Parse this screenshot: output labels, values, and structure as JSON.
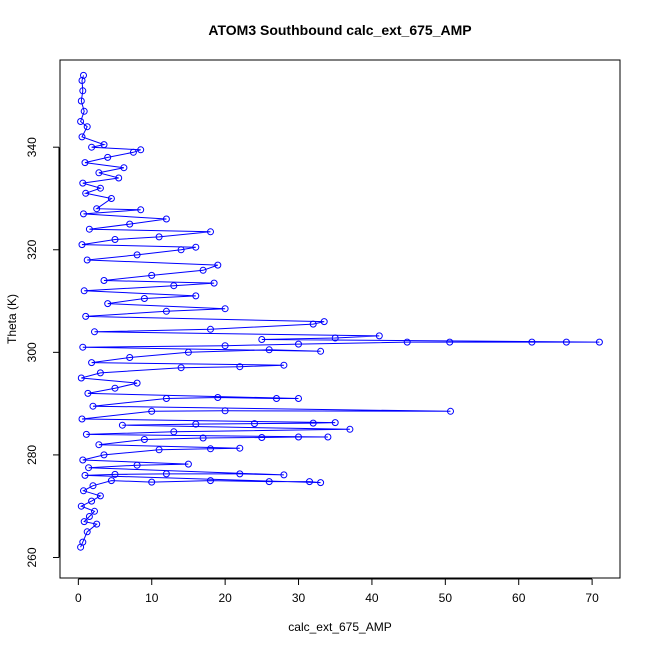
{
  "chart_data": {
    "type": "scatter",
    "title": "ATOM3 Southbound calc_ext_675_AMP",
    "xlabel": "calc_ext_675_AMP",
    "ylabel": "Theta (K)",
    "xlim": [
      -2.5,
      73.8
    ],
    "ylim": [
      256,
      357
    ],
    "xticks": [
      0,
      10,
      20,
      30,
      40,
      50,
      60,
      70
    ],
    "yticks": [
      260,
      280,
      300,
      320,
      340
    ],
    "grid": false,
    "legend": "none",
    "colors": {
      "series": "#0000ff",
      "axes": "#000000"
    },
    "markers": "open-circle",
    "connected": true,
    "series": [
      {
        "values": [
          [
            0.3,
            262
          ],
          [
            0.6,
            263
          ],
          [
            1.2,
            265
          ],
          [
            2.5,
            266.5
          ],
          [
            0.8,
            267
          ],
          [
            1.5,
            268
          ],
          [
            2.2,
            269
          ],
          [
            0.4,
            270
          ],
          [
            1.8,
            271
          ],
          [
            3.0,
            272
          ],
          [
            0.7,
            273
          ],
          [
            2.0,
            274
          ],
          [
            4.5,
            275
          ],
          [
            10,
            274.7
          ],
          [
            18,
            275
          ],
          [
            26,
            274.8
          ],
          [
            31.5,
            274.8
          ],
          [
            33,
            274.6
          ],
          [
            0.9,
            276
          ],
          [
            5,
            276.2
          ],
          [
            12,
            276.3
          ],
          [
            22,
            276.3
          ],
          [
            28,
            276.1
          ],
          [
            1.4,
            277.5
          ],
          [
            8,
            278
          ],
          [
            15,
            278.2
          ],
          [
            0.6,
            279
          ],
          [
            3.5,
            280
          ],
          [
            11,
            281
          ],
          [
            18,
            281.2
          ],
          [
            22,
            281.3
          ],
          [
            2.8,
            282
          ],
          [
            9,
            283
          ],
          [
            17,
            283.3
          ],
          [
            25,
            283.4
          ],
          [
            30,
            283.5
          ],
          [
            34,
            283.5
          ],
          [
            1.1,
            284
          ],
          [
            13,
            284.5
          ],
          [
            37,
            285
          ],
          [
            6,
            285.8
          ],
          [
            16,
            286
          ],
          [
            24,
            286.1
          ],
          [
            32,
            286.2
          ],
          [
            35,
            286.3
          ],
          [
            0.5,
            287
          ],
          [
            10,
            288.5
          ],
          [
            20,
            288.6
          ],
          [
            50.7,
            288.5
          ],
          [
            2.0,
            289.5
          ],
          [
            12,
            291
          ],
          [
            19,
            291.2
          ],
          [
            27,
            291
          ],
          [
            30,
            291
          ],
          [
            1.3,
            292
          ],
          [
            5,
            293
          ],
          [
            8,
            294
          ],
          [
            0.4,
            295
          ],
          [
            3,
            296
          ],
          [
            14,
            297
          ],
          [
            22,
            297.2
          ],
          [
            28,
            297.5
          ],
          [
            1.8,
            298
          ],
          [
            7,
            299
          ],
          [
            15,
            300
          ],
          [
            26,
            300.5
          ],
          [
            33,
            300.2
          ],
          [
            0.6,
            301
          ],
          [
            20,
            301.3
          ],
          [
            30,
            301.6
          ],
          [
            44.8,
            302
          ],
          [
            50.6,
            302
          ],
          [
            61.8,
            302
          ],
          [
            66.5,
            302
          ],
          [
            71,
            302
          ],
          [
            25,
            302.5
          ],
          [
            35,
            302.8
          ],
          [
            41,
            303.2
          ],
          [
            2.2,
            304
          ],
          [
            18,
            304.5
          ],
          [
            32,
            305.5
          ],
          [
            33.5,
            306
          ],
          [
            1.0,
            307
          ],
          [
            12,
            308
          ],
          [
            20,
            308.5
          ],
          [
            4,
            309.5
          ],
          [
            9,
            310.5
          ],
          [
            16,
            311
          ],
          [
            0.8,
            312
          ],
          [
            13,
            313
          ],
          [
            18.5,
            313.5
          ],
          [
            3.5,
            314
          ],
          [
            10,
            315
          ],
          [
            17,
            316
          ],
          [
            19,
            317
          ],
          [
            1.2,
            318
          ],
          [
            8,
            319
          ],
          [
            14,
            320
          ],
          [
            16,
            320.5
          ],
          [
            0.5,
            321
          ],
          [
            5,
            322
          ],
          [
            11,
            322.5
          ],
          [
            18,
            323.5
          ],
          [
            1.5,
            324
          ],
          [
            7,
            325
          ],
          [
            12,
            326
          ],
          [
            0.7,
            327
          ],
          [
            8.5,
            327.8
          ],
          [
            2.5,
            328
          ],
          [
            4.5,
            330
          ],
          [
            1.0,
            331
          ],
          [
            3,
            332
          ],
          [
            0.6,
            333
          ],
          [
            5.5,
            334
          ],
          [
            2.8,
            335
          ],
          [
            6.2,
            336
          ],
          [
            0.9,
            337
          ],
          [
            4,
            338
          ],
          [
            7.5,
            339
          ],
          [
            8.5,
            339.5
          ],
          [
            1.8,
            340
          ],
          [
            3.5,
            340.5
          ],
          [
            0.5,
            342
          ],
          [
            1.2,
            344
          ],
          [
            0.3,
            345
          ],
          [
            0.8,
            347
          ],
          [
            0.4,
            349
          ],
          [
            0.6,
            351
          ],
          [
            0.5,
            353
          ],
          [
            0.7,
            354
          ]
        ]
      }
    ]
  }
}
